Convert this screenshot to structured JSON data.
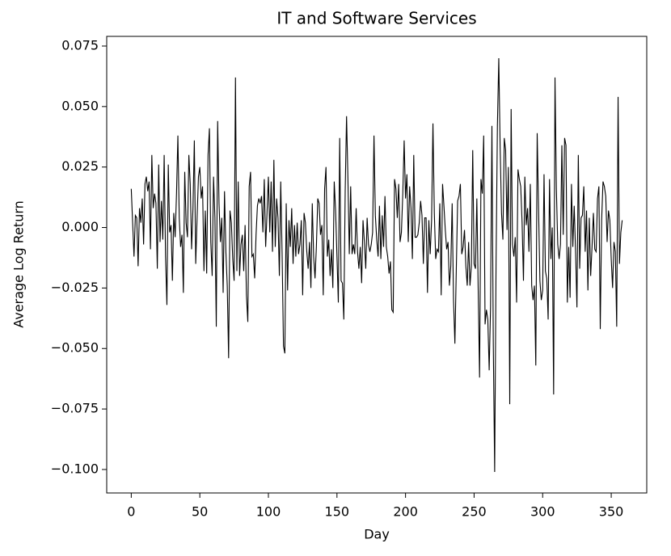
{
  "chart_data": {
    "type": "line",
    "title": "IT and Software Services",
    "xlabel": "Day",
    "ylabel": "Average Log Return",
    "x": [
      0,
      1,
      2,
      3,
      4,
      5,
      6,
      7,
      8,
      9,
      10,
      11,
      12,
      13,
      14,
      15,
      16,
      17,
      18,
      19,
      20,
      21,
      22,
      23,
      24,
      25,
      26,
      27,
      28,
      29,
      30,
      31,
      32,
      33,
      34,
      35,
      36,
      37,
      38,
      39,
      40,
      41,
      42,
      43,
      44,
      45,
      46,
      47,
      48,
      49,
      50,
      51,
      52,
      53,
      54,
      55,
      56,
      57,
      58,
      59,
      60,
      61,
      62,
      63,
      64,
      65,
      66,
      67,
      68,
      69,
      70,
      71,
      72,
      73,
      74,
      75,
      76,
      77,
      78,
      79,
      80,
      81,
      82,
      83,
      84,
      85,
      86,
      87,
      88,
      89,
      90,
      91,
      92,
      93,
      94,
      95,
      96,
      97,
      98,
      99,
      100,
      101,
      102,
      103,
      104,
      105,
      106,
      107,
      108,
      109,
      110,
      111,
      112,
      113,
      114,
      115,
      116,
      117,
      118,
      119,
      120,
      121,
      122,
      123,
      124,
      125,
      126,
      127,
      128,
      129,
      130,
      131,
      132,
      133,
      134,
      135,
      136,
      137,
      138,
      139,
      140,
      141,
      142,
      143,
      144,
      145,
      146,
      147,
      148,
      149,
      150,
      151,
      152,
      153,
      154,
      155,
      156,
      157,
      158,
      159,
      160,
      161,
      162,
      163,
      164,
      165,
      166,
      167,
      168,
      169,
      170,
      171,
      172,
      173,
      174,
      175,
      176,
      177,
      178,
      179,
      180,
      181,
      182,
      183,
      184,
      185,
      186,
      187,
      188,
      189,
      190,
      191,
      192,
      193,
      194,
      195,
      196,
      197,
      198,
      199,
      200,
      201,
      202,
      203,
      204,
      205,
      206,
      207,
      208,
      209,
      210,
      211,
      212,
      213,
      214,
      215,
      216,
      217,
      218,
      219,
      220,
      221,
      222,
      223,
      224,
      225,
      226,
      227,
      228,
      229,
      230,
      231,
      232,
      233,
      234,
      235,
      236,
      237,
      238,
      239,
      240,
      241,
      242,
      243,
      244,
      245,
      246,
      247,
      248,
      249,
      250,
      251,
      252,
      253,
      254,
      255,
      256,
      257,
      258,
      259,
      260,
      261,
      262,
      263,
      264,
      265,
      266,
      267,
      268,
      269,
      270,
      271,
      272,
      273,
      274,
      275,
      276,
      277,
      278,
      279,
      280,
      281,
      282,
      283,
      284,
      285,
      286,
      287,
      288,
      289,
      290,
      291,
      292,
      293,
      294,
      295,
      296,
      297,
      298,
      299,
      300,
      301,
      302,
      303,
      304,
      305,
      306,
      307,
      308,
      309,
      310,
      311,
      312,
      313,
      314,
      315,
      316,
      317,
      318,
      319,
      320,
      321,
      322,
      323,
      324,
      325,
      326,
      327,
      328,
      329,
      330,
      331,
      332,
      333,
      334,
      335,
      336,
      337,
      338,
      339,
      340,
      341,
      342,
      343,
      344,
      345,
      346,
      347,
      348,
      349,
      350,
      351,
      352,
      353,
      354,
      355,
      356,
      357,
      358
    ],
    "values": [
      0.016,
      0.002,
      -0.012,
      0.005,
      0.004,
      -0.016,
      0.008,
      0.002,
      0.012,
      -0.007,
      0.018,
      0.021,
      0.015,
      0.019,
      -0.009,
      0.03,
      0.008,
      0.014,
      0.01,
      -0.017,
      0.026,
      -0.006,
      0.011,
      -0.005,
      0.03,
      -0.012,
      -0.032,
      0.026,
      -0.002,
      0.001,
      -0.022,
      0.006,
      -0.004,
      0.014,
      0.038,
      0.004,
      -0.008,
      -0.003,
      -0.027,
      0.023,
      0.002,
      -0.004,
      0.03,
      0.018,
      -0.009,
      0.008,
      0.036,
      -0.015,
      0.004,
      0.021,
      0.025,
      0.012,
      0.017,
      -0.018,
      0.007,
      -0.019,
      0.03,
      0.041,
      -0.006,
      -0.02,
      0.021,
      0.004,
      -0.041,
      0.044,
      0.01,
      -0.006,
      0.004,
      -0.027,
      0.015,
      -0.01,
      -0.024,
      -0.054,
      0.007,
      0.002,
      -0.013,
      -0.022,
      0.062,
      -0.018,
      0.019,
      -0.02,
      -0.007,
      -0.003,
      -0.018,
      0.001,
      -0.028,
      -0.039,
      0.017,
      0.023,
      -0.012,
      -0.011,
      -0.021,
      -0.003,
      0.009,
      0.012,
      0.01,
      0.013,
      -0.002,
      0.02,
      -0.008,
      0.006,
      0.021,
      -0.002,
      0.019,
      -0.01,
      0.028,
      -0.008,
      0.012,
      0.004,
      -0.02,
      0.019,
      -0.011,
      -0.049,
      -0.052,
      0.01,
      -0.026,
      0.003,
      -0.008,
      0.008,
      -0.015,
      0.001,
      -0.012,
      0.002,
      -0.011,
      -0.007,
      0.003,
      -0.028,
      0.006,
      0.002,
      -0.01,
      -0.017,
      -0.006,
      -0.025,
      0.01,
      -0.012,
      -0.021,
      -0.008,
      0.012,
      0.01,
      -0.003,
      0.001,
      -0.028,
      0.016,
      0.025,
      -0.012,
      -0.005,
      -0.02,
      -0.009,
      -0.025,
      0.019,
      0.007,
      -0.012,
      -0.031,
      0.037,
      -0.022,
      -0.023,
      -0.038,
      0.015,
      0.046,
      0.02,
      -0.011,
      0.017,
      -0.011,
      -0.007,
      -0.011,
      0.008,
      -0.01,
      -0.017,
      -0.008,
      -0.023,
      0.003,
      -0.006,
      -0.017,
      0.004,
      -0.007,
      -0.01,
      -0.007,
      -0.002,
      0.038,
      0.005,
      -0.005,
      -0.012,
      0.009,
      -0.013,
      0.005,
      -0.008,
      0.013,
      -0.008,
      -0.012,
      -0.019,
      -0.014,
      -0.034,
      -0.035,
      0.02,
      0.016,
      0.004,
      0.018,
      -0.006,
      -0.002,
      0.014,
      0.036,
      0.012,
      0.022,
      -0.006,
      0.017,
      0.008,
      -0.013,
      0.03,
      -0.004,
      -0.004,
      -0.003,
      0.002,
      0.011,
      0.005,
      -0.015,
      0.004,
      0.004,
      -0.027,
      0.003,
      -0.011,
      0.003,
      0.043,
      0.006,
      -0.013,
      -0.009,
      -0.01,
      0.01,
      -0.028,
      0.018,
      0.009,
      -0.001,
      -0.009,
      -0.006,
      -0.024,
      -0.016,
      0.01,
      -0.03,
      -0.048,
      -0.018,
      0.011,
      0.013,
      0.018,
      -0.011,
      -0.008,
      -0.001,
      -0.016,
      -0.024,
      -0.006,
      -0.024,
      -0.016,
      0.032,
      -0.015,
      -0.017,
      0.012,
      -0.026,
      -0.062,
      0.02,
      0.014,
      0.038,
      -0.04,
      -0.034,
      -0.038,
      -0.059,
      -0.033,
      0.042,
      -0.048,
      -0.101,
      -0.016,
      0.042,
      0.07,
      0.033,
      0.006,
      -0.005,
      0.037,
      0.032,
      -0.001,
      0.025,
      -0.073,
      0.049,
      -0.007,
      -0.012,
      -0.004,
      -0.031,
      0.024,
      0.02,
      0.017,
      0.002,
      -0.022,
      0.021,
      0.001,
      0.008,
      -0.01,
      0.018,
      -0.024,
      -0.03,
      -0.024,
      -0.057,
      0.039,
      0.008,
      -0.022,
      -0.03,
      -0.026,
      0.022,
      -0.018,
      -0.021,
      -0.038,
      0.02,
      -0.013,
      0.0,
      -0.069,
      0.062,
      0.016,
      -0.007,
      -0.013,
      -0.007,
      0.034,
      -0.003,
      0.037,
      0.034,
      -0.031,
      -0.008,
      -0.029,
      0.018,
      -0.008,
      0.009,
      -0.01,
      -0.033,
      0.03,
      -0.017,
      0.004,
      0.005,
      0.017,
      -0.01,
      0.007,
      -0.026,
      0.004,
      -0.02,
      -0.008,
      0.006,
      -0.009,
      -0.01,
      0.012,
      0.017,
      -0.042,
      0.003,
      0.019,
      0.017,
      0.013,
      -0.006,
      0.007,
      0.003,
      -0.013,
      -0.025,
      -0.006,
      -0.01,
      -0.041,
      0.054,
      -0.015,
      -0.002,
      0.003
    ],
    "color": "#000000",
    "xlim": [
      -17.9,
      375.9
    ],
    "xticks": [
      0,
      50,
      100,
      150,
      200,
      250,
      300,
      350
    ],
    "ylim": [
      -0.1097,
      0.079
    ],
    "yticks": [
      {
        "value": -0.1,
        "label": "−0.100"
      },
      {
        "value": -0.075,
        "label": "−0.075"
      },
      {
        "value": -0.05,
        "label": "−0.050"
      },
      {
        "value": -0.025,
        "label": "−0.025"
      },
      {
        "value": 0,
        "label": "0.000"
      },
      0.025,
      {
        "value": 0.05,
        "label": "0.050"
      },
      0.075
    ]
  }
}
